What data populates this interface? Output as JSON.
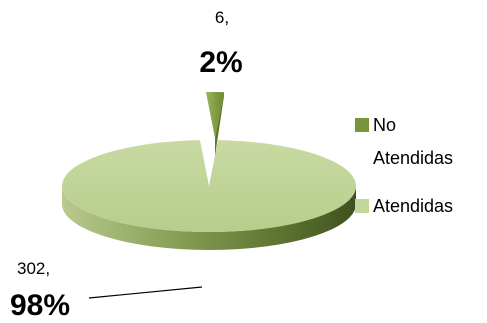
{
  "chart_data": {
    "type": "pie",
    "title": "",
    "series": [
      {
        "name": "",
        "categories": [
          "No Atendidas",
          "Atendidas"
        ],
        "values": [
          6,
          302
        ],
        "percent_labels": [
          "2%",
          "98%"
        ],
        "count_labels": [
          "6,",
          "302,"
        ],
        "colors": [
          "#77933c",
          "#c3d69b"
        ]
      }
    ],
    "legend": {
      "placement": "right",
      "entries": [
        {
          "label_line1": "No",
          "label_line2": "Atendidas",
          "color": "#77933c"
        },
        {
          "label_line1": "Atendidas",
          "label_line2": "",
          "color": "#c3d69b"
        }
      ]
    },
    "style": "3d-exploded"
  }
}
